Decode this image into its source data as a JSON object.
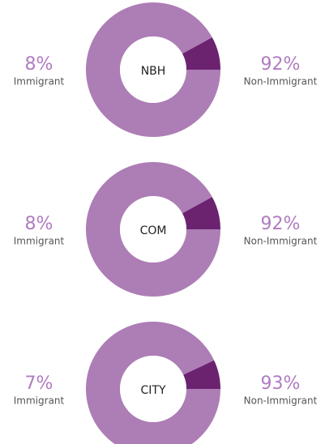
{
  "chart_data": [
    {
      "type": "pie",
      "title": "NBH",
      "categories": [
        "Immigrant",
        "Non-Immigrant"
      ],
      "values": [
        8,
        92
      ],
      "value_labels": [
        "8%",
        "92%"
      ],
      "colors": [
        "#6b2370",
        "#ad7db5"
      ]
    },
    {
      "type": "pie",
      "title": "COM",
      "categories": [
        "Immigrant",
        "Non-Immigrant"
      ],
      "values": [
        8,
        92
      ],
      "value_labels": [
        "8%",
        "92%"
      ],
      "colors": [
        "#6b2370",
        "#ad7db5"
      ]
    },
    {
      "type": "pie",
      "title": "CITY",
      "categories": [
        "Immigrant",
        "Non-Immigrant"
      ],
      "values": [
        7,
        93
      ],
      "value_labels": [
        "7%",
        "93%"
      ],
      "colors": [
        "#6b2370",
        "#ad7db5"
      ]
    }
  ]
}
